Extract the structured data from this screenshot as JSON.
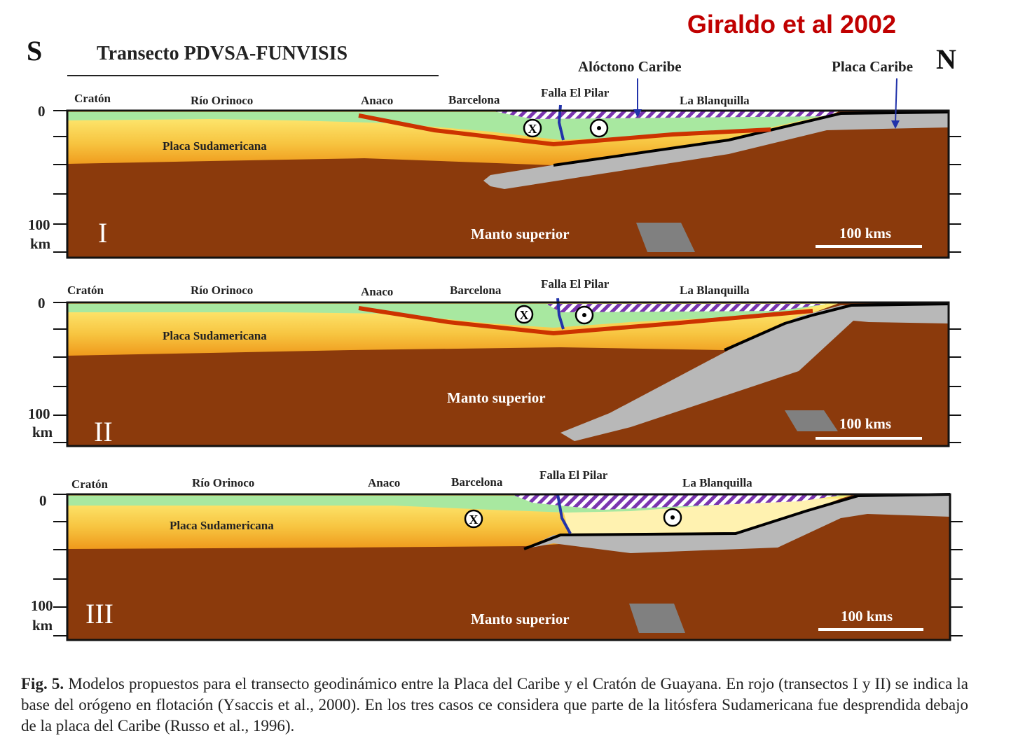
{
  "header": {
    "author": "Giraldo et al 2002",
    "south": "S",
    "north": "N",
    "transect_title": "Transecto PDVSA-FUNVISIS"
  },
  "panels": [
    {
      "roman": "I",
      "places": [
        "Cratón",
        "Río Orinoco",
        "Anaco",
        "Barcelona",
        "Falla El Pilar",
        "La Blanquilla"
      ],
      "extra_labels": [
        "Alóctono Caribe",
        "Placa Caribe"
      ],
      "plate_label": "Placa Sudamericana",
      "mantle_label": "Manto superior",
      "scale_label": "100 kms",
      "depth_top": "0",
      "depth_bottom": "100",
      "depth_unit": "km"
    },
    {
      "roman": "II",
      "places": [
        "Cratón",
        "Río Orinoco",
        "Anaco",
        "Barcelona",
        "Falla El Pilar",
        "La Blanquilla"
      ],
      "plate_label": "Placa Sudamericana",
      "mantle_label": "Manto superior",
      "scale_label": "100 kms",
      "depth_top": "0",
      "depth_bottom": "100",
      "depth_unit": "km"
    },
    {
      "roman": "III",
      "places": [
        "Cratón",
        "Río Orinoco",
        "Anaco",
        "Barcelona",
        "Falla El Pilar",
        "La Blanquilla"
      ],
      "plate_label": "Placa Sudamericana",
      "mantle_label": "Manto superior",
      "scale_label": "100 kms",
      "depth_top": "0",
      "depth_bottom": "100",
      "depth_unit": "km"
    }
  ],
  "symbols": {
    "into_page": "X",
    "out_of_page": "•"
  },
  "caption": {
    "label": "Fig. 5.",
    "text": "Modelos propuestos para el transecto geodinámico entre la Placa del Caribe y el Cratón de Guayana. En rojo (transectos I y II) se indica la base del orógeno en flotación (Ysaccis et al., 2000). En los tres casos ce considera que parte de la litósfera Sudamericana fue desprendida debajo de la placa del Caribe (Russo et al., 1996)."
  },
  "colors": {
    "mantle": "#8b3a0c",
    "crust_top": "#ffe066",
    "crust_bottom": "#f0a020",
    "sediment": "#a8e8a0",
    "caribbean_slab": "#b8b8b8",
    "floating_orogen_base": "#cc3300",
    "fault": "#2233aa",
    "allochthon_hatch": "#7733aa",
    "author_red": "#c00000"
  }
}
